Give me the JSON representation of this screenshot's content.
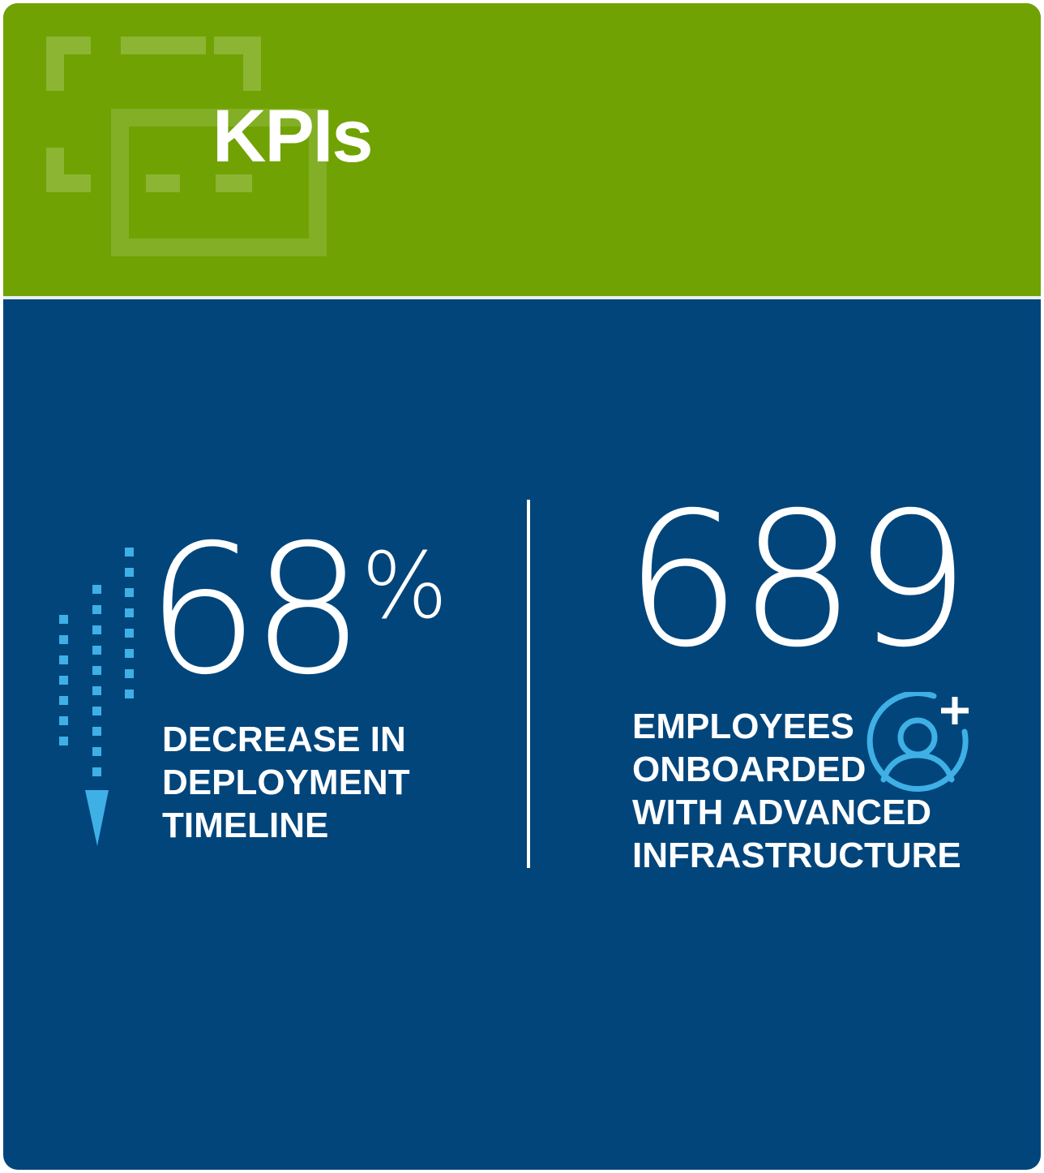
{
  "header": {
    "title": "KPIs",
    "background_color": "#71a204",
    "decoration_icon": "scan-frame-icon"
  },
  "body": {
    "background_color": "#02457b",
    "accent_color": "#3eb0e6"
  },
  "kpis": [
    {
      "value": "68",
      "unit": "%",
      "label_lines": [
        "DECREASE IN",
        "DEPLOYMENT",
        "TIMELINE"
      ],
      "icon": "dotted-down-arrow-icon"
    },
    {
      "value": "689",
      "label_lines": [
        "EMPLOYEES",
        "ONBOARDED",
        "WITH ADVANCED",
        "INFRASTRUCTURE"
      ],
      "icon": "add-user-icon"
    }
  ]
}
